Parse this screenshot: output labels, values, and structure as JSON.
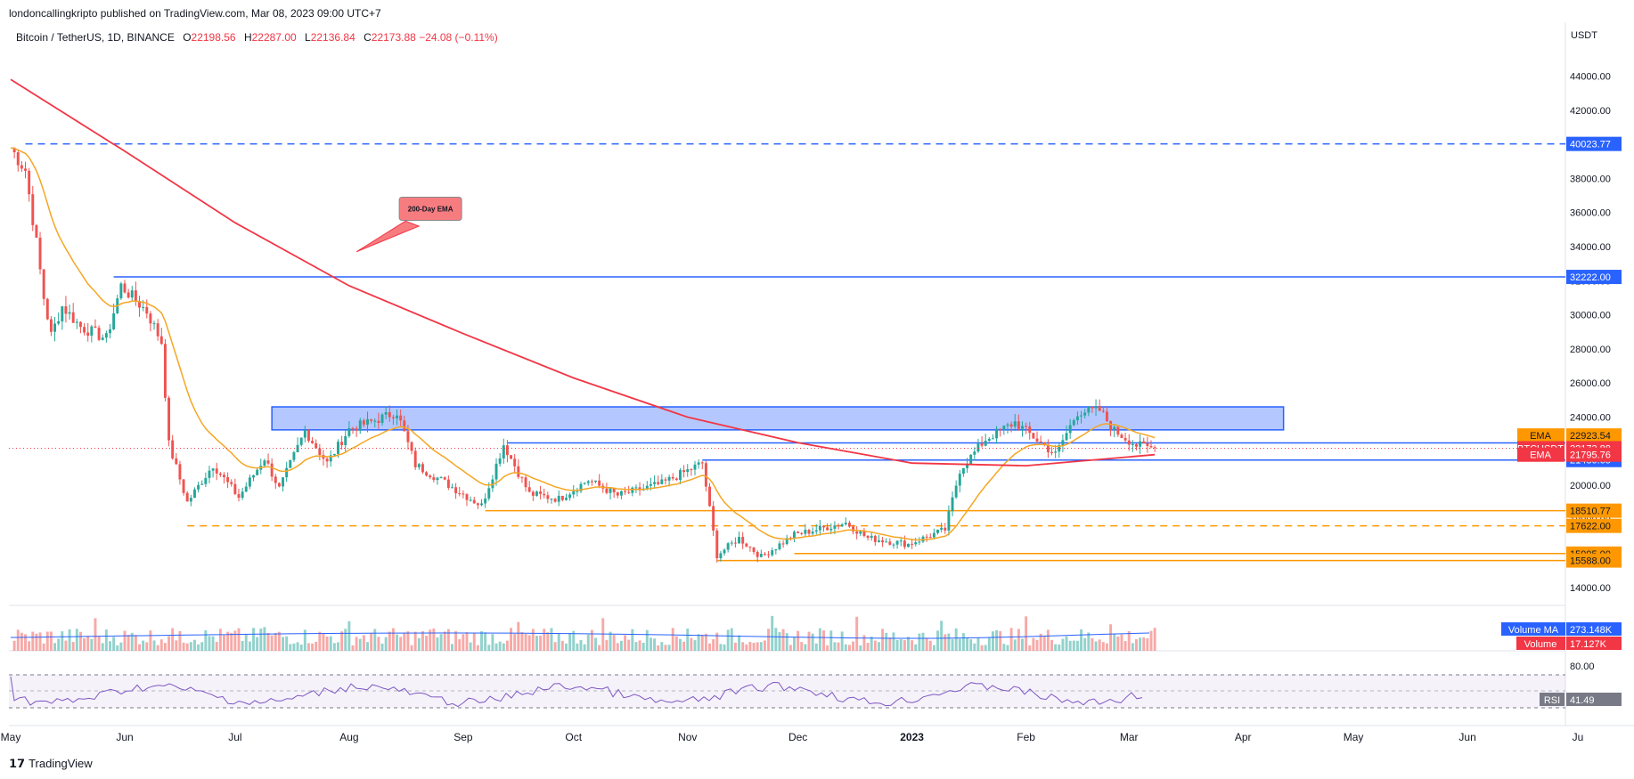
{
  "header": {
    "publisher": "londoncallingkripto published on TradingView.com, Mar 08, 2023 09:00 UTC+7"
  },
  "legend": {
    "symbol": "Bitcoin / TetherUS, 1D, BINANCE",
    "open_label": "O",
    "open": "22198.56",
    "high_label": "H",
    "high": "22287.00",
    "low_label": "L",
    "low": "22136.84",
    "close_label": "C",
    "close": "22173.88",
    "change": "−24.08 (−0.11%)"
  },
  "currency": "USDT",
  "footer": {
    "brand": "TradingView"
  },
  "chart_data": {
    "type": "candlestick",
    "symbol": "BTCUSDT",
    "interval": "1D",
    "x_tick_labels": [
      "May",
      "Jun",
      "Jul",
      "Aug",
      "Sep",
      "Oct",
      "Nov",
      "Dec",
      "2023",
      "Feb",
      "Mar",
      "Apr",
      "May",
      "Jun",
      "Ju"
    ],
    "y_tick_labels": [
      "14000.00",
      "16000.00",
      "18000.00",
      "20000.00",
      "22000.00",
      "24000.00",
      "26000.00",
      "28000.00",
      "30000.00",
      "32000.00",
      "34000.00",
      "36000.00",
      "38000.00",
      "40000.00",
      "42000.00",
      "44000.00"
    ],
    "ylim": [
      13000,
      46000
    ],
    "candles_approx": [
      [
        "2022-05-01",
        39800
      ],
      [
        "2022-05-05",
        38500
      ],
      [
        "2022-05-08",
        34200
      ],
      [
        "2022-05-10",
        31000
      ],
      [
        "2022-05-12",
        28800
      ],
      [
        "2022-05-15",
        30500
      ],
      [
        "2022-05-20",
        29300
      ],
      [
        "2022-05-27",
        28600
      ],
      [
        "2022-05-31",
        31700
      ],
      [
        "2022-06-07",
        30200
      ],
      [
        "2022-06-11",
        28400
      ],
      [
        "2022-06-13",
        22400
      ],
      [
        "2022-06-18",
        19000
      ],
      [
        "2022-06-25",
        21200
      ],
      [
        "2022-07-02",
        19300
      ],
      [
        "2022-07-09",
        21600
      ],
      [
        "2022-07-13",
        19800
      ],
      [
        "2022-07-20",
        23200
      ],
      [
        "2022-07-26",
        21300
      ],
      [
        "2022-08-01",
        23300
      ],
      [
        "2022-08-08",
        23800
      ],
      [
        "2022-08-14",
        24300
      ],
      [
        "2022-08-19",
        21200
      ],
      [
        "2022-08-26",
        20300
      ],
      [
        "2022-09-06",
        18800
      ],
      [
        "2022-09-12",
        22400
      ],
      [
        "2022-09-19",
        19500
      ],
      [
        "2022-09-27",
        19200
      ],
      [
        "2022-10-05",
        20300
      ],
      [
        "2022-10-13",
        19400
      ],
      [
        "2022-10-25",
        20100
      ],
      [
        "2022-11-05",
        21300
      ],
      [
        "2022-11-09",
        15900
      ],
      [
        "2022-11-15",
        16900
      ],
      [
        "2022-11-21",
        15800
      ],
      [
        "2022-11-30",
        17100
      ],
      [
        "2022-12-14",
        17800
      ],
      [
        "2022-12-20",
        16900
      ],
      [
        "2022-12-31",
        16550
      ],
      [
        "2023-01-10",
        17400
      ],
      [
        "2023-01-14",
        20900
      ],
      [
        "2023-01-21",
        22700
      ],
      [
        "2023-01-29",
        23700
      ],
      [
        "2023-02-09",
        21800
      ],
      [
        "2023-02-15",
        24300
      ],
      [
        "2023-02-21",
        24400
      ],
      [
        "2023-02-25",
        23200
      ],
      [
        "2023-03-03",
        22350
      ],
      [
        "2023-03-08",
        22173.88
      ]
    ],
    "indicators": {
      "ema_fast": {
        "name": "EMA",
        "last": "22923.54",
        "color": "#f5a623"
      },
      "ema_200": {
        "name": "EMA",
        "last": "21795.76",
        "color": "#f23645",
        "annotation": "200-Day EMA"
      }
    },
    "levels": [
      {
        "price": "40023.77",
        "style": "dashed",
        "color": "#2962ff"
      },
      {
        "price": "32222.00",
        "style": "solid",
        "color": "#2962ff"
      },
      {
        "price": "22488.00",
        "style": "solid",
        "color": "#2962ff"
      },
      {
        "price": "21480.65",
        "style": "solid",
        "color": "#2962ff"
      },
      {
        "price": "18510.77",
        "style": "solid",
        "color": "#ff9800"
      },
      {
        "price": "17622.00",
        "style": "dashed",
        "color": "#ff9800"
      },
      {
        "price": "15995.00",
        "style": "solid",
        "color": "#ff9800"
      },
      {
        "price": "15588.00",
        "style": "solid",
        "color": "#ff9800"
      }
    ],
    "resistance_zone": {
      "from": 23250,
      "to": 24600,
      "color": "#2962ff"
    },
    "price_tags": {
      "ema_label": "EMA",
      "ema_value": "22923.54",
      "btc_label": "BTCUSDT",
      "btc_value": "22173.88",
      "ema200_label": "EMA",
      "ema200_value": "21795.76"
    },
    "volume": {
      "ma_label": "Volume MA",
      "ma_value": "273.148K",
      "vol_label": "Volume",
      "vol_value": "17.127K"
    },
    "rsi": {
      "label": "RSI",
      "value": "41.49",
      "upper_label": "80.00"
    }
  }
}
